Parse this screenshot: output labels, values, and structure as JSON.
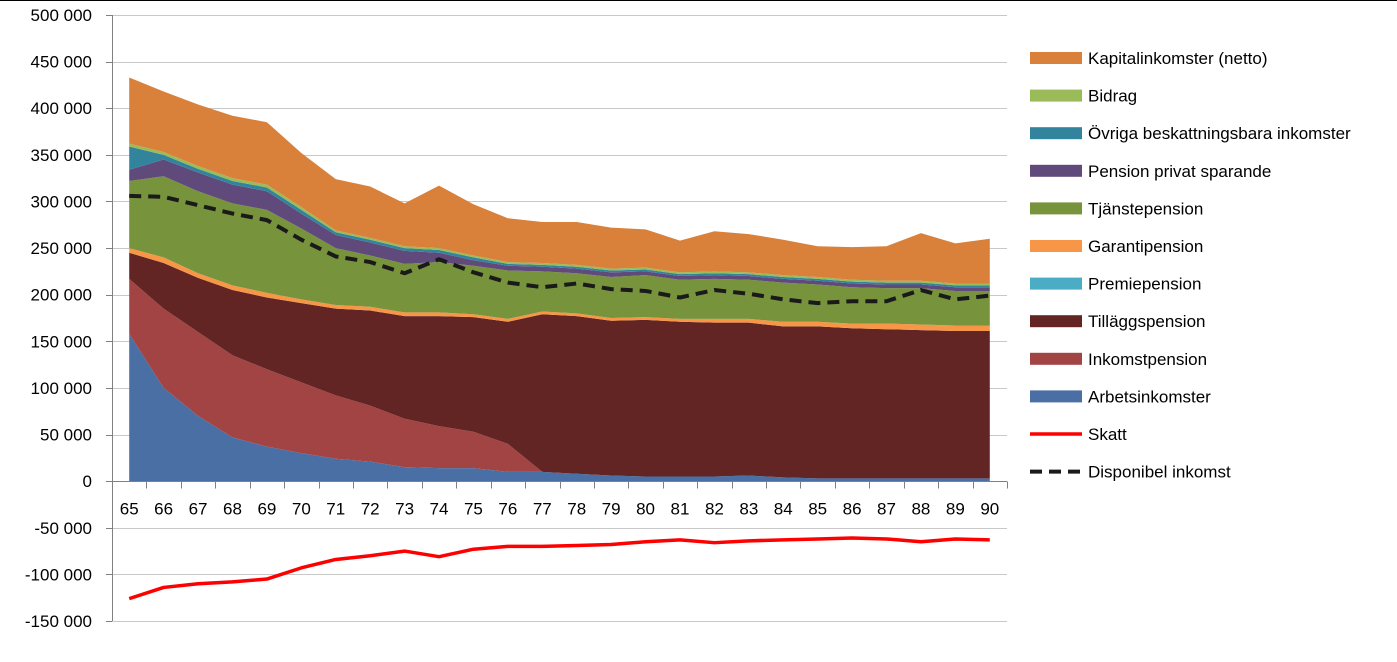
{
  "chart_data": {
    "type": "area",
    "title": "",
    "xlabel": "",
    "ylabel": "",
    "x": [
      65,
      66,
      67,
      68,
      69,
      70,
      71,
      72,
      73,
      74,
      75,
      76,
      77,
      78,
      79,
      80,
      81,
      82,
      83,
      84,
      85,
      86,
      87,
      88,
      89,
      90
    ],
    "x_tick_labels": [
      "65",
      "66",
      "67",
      "68",
      "69",
      "70",
      "71",
      "72",
      "73",
      "74",
      "75",
      "76",
      "77",
      "78",
      "79",
      "80",
      "81",
      "82",
      "83",
      "84",
      "85",
      "86",
      "87",
      "88",
      "89",
      "90"
    ],
    "ylim": [
      -150000,
      500000
    ],
    "y_ticks": [
      500000,
      450000,
      400000,
      350000,
      300000,
      250000,
      200000,
      150000,
      100000,
      50000,
      0,
      -50000,
      -100000,
      -150000
    ],
    "y_tick_labels": [
      "500 000",
      "450 000",
      "400 000",
      "350 000",
      "300 000",
      "250 000",
      "200 000",
      "150 000",
      "100 000",
      "50 000",
      "0",
      "-50 000",
      "-100 000",
      "-150 000"
    ],
    "grid": "horizontal",
    "legend_position": "right",
    "stacked_series": [
      {
        "name": "Arbetsinkomster",
        "color": "#4a6fa5",
        "values": [
          158000,
          100000,
          70000,
          47000,
          37000,
          30000,
          24000,
          21000,
          15000,
          14000,
          14000,
          10000,
          10000,
          8000,
          6000,
          5000,
          5000,
          5000,
          6000,
          4000,
          3000,
          3000,
          3000,
          3000,
          3000,
          3000
        ]
      },
      {
        "name": "Inkomstpension",
        "color": "#a14443",
        "values": [
          59000,
          85000,
          90000,
          88000,
          83000,
          76000,
          68000,
          60000,
          52000,
          45000,
          39000,
          30000,
          0,
          0,
          0,
          0,
          0,
          0,
          0,
          0,
          0,
          0,
          0,
          0,
          0,
          0
        ]
      },
      {
        "name": "Tilläggspension",
        "color": "#632523",
        "values": [
          28000,
          49000,
          58000,
          70000,
          77000,
          85000,
          93000,
          102000,
          110000,
          118000,
          123000,
          131000,
          169000,
          169000,
          166000,
          168000,
          166000,
          165000,
          164000,
          162000,
          163000,
          161000,
          160000,
          159000,
          158000,
          158000
        ]
      },
      {
        "name": "Premiepension",
        "color": "#4bacc6",
        "values": [
          0,
          0,
          0,
          0,
          0,
          0,
          0,
          0,
          0,
          0,
          0,
          0,
          0,
          0,
          0,
          0,
          0,
          0,
          0,
          0,
          0,
          0,
          0,
          0,
          0,
          0
        ]
      },
      {
        "name": "Garantipension",
        "color": "#f79646",
        "values": [
          5000,
          6000,
          5000,
          5000,
          5000,
          4000,
          4000,
          4000,
          4000,
          4000,
          3000,
          3000,
          3000,
          3000,
          3000,
          3000,
          3000,
          4000,
          4000,
          5000,
          5000,
          5000,
          6000,
          6000,
          6000,
          6000
        ]
      },
      {
        "name": "Tjänstepension",
        "color": "#77933c",
        "values": [
          72000,
          87000,
          88000,
          88000,
          89000,
          76000,
          61000,
          55000,
          52000,
          54000,
          52000,
          52000,
          43000,
          43000,
          44000,
          45000,
          42000,
          43000,
          42000,
          42000,
          40000,
          39000,
          38000,
          39000,
          37000,
          37000
        ]
      },
      {
        "name": "Pension privat sparande",
        "color": "#604a7b",
        "values": [
          12000,
          18000,
          20000,
          20000,
          20000,
          16000,
          14000,
          14000,
          14000,
          10000,
          6000,
          5000,
          5000,
          5000,
          5000,
          4000,
          4000,
          4000,
          4000,
          4000,
          4000,
          4000,
          4000,
          4000,
          4000,
          4000
        ]
      },
      {
        "name": "Övriga beskattningsbara inkomster",
        "color": "#31849b",
        "values": [
          25000,
          5000,
          4000,
          4000,
          4000,
          4000,
          3000,
          3000,
          3000,
          3000,
          3000,
          2000,
          2000,
          2000,
          2000,
          2000,
          2000,
          2000,
          2000,
          2000,
          2000,
          2000,
          2000,
          2000,
          2000,
          2000
        ]
      },
      {
        "name": "Bidrag",
        "color": "#9bbb59",
        "values": [
          3000,
          3000,
          3000,
          3000,
          3000,
          3000,
          2000,
          2000,
          2000,
          2000,
          2000,
          2000,
          2000,
          2000,
          2000,
          2000,
          2000,
          2000,
          2000,
          2000,
          2000,
          2000,
          2000,
          2000,
          2000,
          2000
        ]
      },
      {
        "name": "Kapitalinkomster (netto)",
        "color": "#d9803a",
        "values": [
          71000,
          65000,
          66000,
          67000,
          67000,
          58000,
          55000,
          55000,
          46000,
          67000,
          55000,
          47000,
          44000,
          46000,
          44000,
          41000,
          34000,
          43000,
          41000,
          38000,
          33000,
          35000,
          37000,
          51000,
          43000,
          48000
        ]
      }
    ],
    "line_series": [
      {
        "name": "Skatt",
        "color": "#ff0000",
        "style": "solid",
        "values": [
          -126000,
          -114000,
          -110000,
          -108000,
          -105000,
          -93000,
          -84000,
          -80000,
          -75000,
          -81000,
          -73000,
          -70000,
          -70000,
          -69000,
          -68000,
          -65000,
          -63000,
          -66000,
          -64000,
          -63000,
          -62000,
          -61000,
          -62000,
          -65000,
          -62000,
          -63000
        ]
      },
      {
        "name": "Disponibel inkomst",
        "color": "#1a1a1a",
        "style": "dashed",
        "values": [
          306000,
          305000,
          296000,
          287000,
          280000,
          259000,
          241000,
          235000,
          223000,
          238000,
          224000,
          213000,
          208000,
          212000,
          206000,
          204000,
          197000,
          205000,
          201000,
          195000,
          191000,
          193000,
          193000,
          205000,
          195000,
          199000
        ]
      }
    ],
    "legend_order": [
      "Kapitalinkomster (netto)",
      "Bidrag",
      "Övriga beskattningsbara inkomster",
      "Pension privat sparande",
      "Tjänstepension",
      "Garantipension",
      "Premiepension",
      "Tilläggspension",
      "Inkomstpension",
      "Arbetsinkomster",
      "Skatt",
      "Disponibel inkomst"
    ]
  }
}
